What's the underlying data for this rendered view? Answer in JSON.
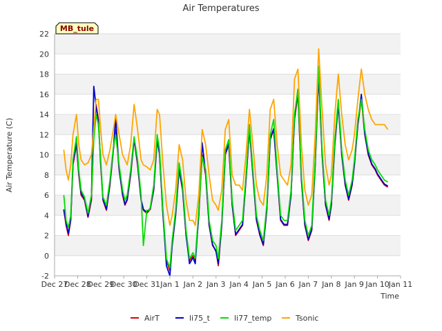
{
  "chart_data": {
    "type": "line",
    "title": "Air Temperatures",
    "xlabel": "Time",
    "ylabel": "Air Temperature (C)",
    "station_label": "MB_tule",
    "ylim": [
      -2,
      22
    ],
    "yticks": [
      -2,
      0,
      2,
      4,
      6,
      8,
      10,
      12,
      14,
      16,
      18,
      20,
      22
    ],
    "xlim": [
      0,
      15
    ],
    "x_unit": "days from Dec 27",
    "xticks": [
      {
        "pos": 0,
        "label": "Dec 27"
      },
      {
        "pos": 1,
        "label": "Dec 28"
      },
      {
        "pos": 2,
        "label": "Dec 29"
      },
      {
        "pos": 3,
        "label": "Dec 30"
      },
      {
        "pos": 4,
        "label": "Dec 31"
      },
      {
        "pos": 5,
        "label": "Jan 1"
      },
      {
        "pos": 6,
        "label": "Jan 2"
      },
      {
        "pos": 7,
        "label": "Jan 3"
      },
      {
        "pos": 8,
        "label": "Jan 4"
      },
      {
        "pos": 9,
        "label": "Jan 5"
      },
      {
        "pos": 10,
        "label": "Jan 6"
      },
      {
        "pos": 11,
        "label": "Jan 7"
      },
      {
        "pos": 12,
        "label": "Jan 8"
      },
      {
        "pos": 13,
        "label": "Jan 9"
      },
      {
        "pos": 14,
        "label": "Jan 10"
      },
      {
        "pos": 15,
        "label": "Jan 11"
      }
    ],
    "grid": true,
    "legend_position": "bottom",
    "series": [
      {
        "name": "AirT",
        "color": "#dd0000",
        "x": [
          0.4,
          0.5,
          0.6,
          0.7,
          0.8,
          0.95,
          1.05,
          1.15,
          1.3,
          1.45,
          1.6,
          1.7,
          1.8,
          1.9,
          2.0,
          2.1,
          2.25,
          2.4,
          2.55,
          2.65,
          2.8,
          2.95,
          3.05,
          3.15,
          3.3,
          3.45,
          3.6,
          3.75,
          3.85,
          4.0,
          4.15,
          4.3,
          4.45,
          4.55,
          4.7,
          4.85,
          5.0,
          5.1,
          5.25,
          5.4,
          5.55,
          5.7,
          5.85,
          6.0,
          6.1,
          6.25,
          6.4,
          6.55,
          6.7,
          6.85,
          7.0,
          7.1,
          7.25,
          7.4,
          7.55,
          7.7,
          7.85,
          8.0,
          8.15,
          8.3,
          8.45,
          8.6,
          8.75,
          8.9,
          9.05,
          9.2,
          9.35,
          9.5,
          9.65,
          9.8,
          9.95,
          10.1,
          10.25,
          10.4,
          10.55,
          10.7,
          10.85,
          11.0,
          11.15,
          11.3,
          11.45,
          11.6,
          11.75,
          11.9,
          12.0,
          12.15,
          12.3,
          12.45,
          12.6,
          12.75,
          12.9,
          13.0,
          13.15,
          13.3,
          13.45,
          13.6,
          13.75,
          13.9,
          14.0,
          14.15,
          14.3,
          14.45
        ],
        "y": [
          4.5,
          3.0,
          2.0,
          3.5,
          9.0,
          11.0,
          8.0,
          6.0,
          5.5,
          3.8,
          5.5,
          12.0,
          15.0,
          13.5,
          9.0,
          5.5,
          4.5,
          7.0,
          10.5,
          12.5,
          8.5,
          6.0,
          5.0,
          5.5,
          8.0,
          11.5,
          9.0,
          5.5,
          4.5,
          4.2,
          4.6,
          6.5,
          11.5,
          10.0,
          4.0,
          -0.5,
          -1.5,
          1.0,
          4.0,
          8.5,
          6.5,
          2.0,
          -0.5,
          0.0,
          -0.5,
          4.0,
          10.0,
          8.0,
          3.0,
          1.0,
          0.5,
          -1.0,
          3.0,
          10.0,
          11.0,
          5.0,
          2.0,
          2.5,
          3.0,
          7.5,
          12.5,
          8.0,
          3.5,
          2.0,
          1.0,
          4.5,
          11.5,
          12.5,
          8.0,
          3.5,
          3.0,
          3.0,
          6.0,
          13.5,
          16.0,
          7.5,
          3.0,
          1.5,
          2.5,
          9.0,
          18.0,
          10.0,
          5.0,
          3.5,
          5.0,
          11.0,
          15.0,
          10.0,
          7.0,
          5.5,
          7.0,
          9.0,
          13.0,
          15.5,
          12.0,
          10.0,
          9.0,
          8.5,
          8.0,
          7.5,
          7.0,
          6.8
        ]
      },
      {
        "name": "li75_t",
        "color": "#0000cc",
        "x": [
          0.4,
          0.5,
          0.6,
          0.7,
          0.8,
          0.95,
          1.05,
          1.15,
          1.3,
          1.45,
          1.6,
          1.7,
          1.8,
          1.9,
          2.0,
          2.1,
          2.25,
          2.4,
          2.55,
          2.65,
          2.8,
          2.95,
          3.05,
          3.15,
          3.3,
          3.45,
          3.6,
          3.75,
          3.85,
          4.0,
          4.15,
          4.3,
          4.45,
          4.55,
          4.7,
          4.85,
          5.0,
          5.1,
          5.25,
          5.4,
          5.55,
          5.7,
          5.85,
          6.0,
          6.1,
          6.25,
          6.4,
          6.55,
          6.7,
          6.85,
          7.0,
          7.1,
          7.25,
          7.4,
          7.55,
          7.7,
          7.85,
          8.0,
          8.15,
          8.3,
          8.45,
          8.6,
          8.75,
          8.9,
          9.05,
          9.2,
          9.35,
          9.5,
          9.65,
          9.8,
          9.95,
          10.1,
          10.25,
          10.4,
          10.55,
          10.7,
          10.85,
          11.0,
          11.15,
          11.3,
          11.45,
          11.6,
          11.75,
          11.9,
          12.0,
          12.15,
          12.3,
          12.45,
          12.6,
          12.75,
          12.9,
          13.0,
          13.15,
          13.3,
          13.45,
          13.6,
          13.75,
          13.9,
          14.0,
          14.15,
          14.3,
          14.45
        ],
        "y": [
          4.6,
          3.2,
          2.2,
          3.6,
          9.2,
          11.2,
          8.2,
          6.2,
          5.6,
          3.9,
          5.8,
          16.8,
          14.8,
          13.2,
          9.2,
          5.6,
          4.6,
          7.2,
          10.6,
          13.6,
          8.6,
          6.1,
          5.1,
          5.6,
          8.2,
          11.6,
          9.2,
          5.6,
          4.6,
          4.3,
          4.7,
          6.6,
          11.6,
          10.1,
          4.1,
          -1.0,
          -2.0,
          1.1,
          4.1,
          8.6,
          6.6,
          2.1,
          -0.8,
          -0.2,
          -0.8,
          4.1,
          11.2,
          8.1,
          3.1,
          1.1,
          0.4,
          -0.8,
          3.1,
          10.1,
          11.1,
          5.1,
          2.1,
          2.6,
          3.1,
          7.6,
          12.6,
          8.1,
          3.6,
          2.1,
          1.1,
          4.6,
          11.6,
          12.6,
          8.1,
          3.6,
          3.1,
          3.1,
          6.1,
          13.6,
          16.5,
          7.6,
          3.1,
          1.6,
          2.6,
          9.1,
          18.2,
          10.1,
          5.1,
          3.6,
          5.1,
          11.1,
          15.1,
          10.1,
          7.1,
          5.6,
          7.1,
          9.1,
          13.1,
          16.0,
          12.1,
          10.1,
          9.1,
          8.6,
          8.1,
          7.6,
          7.1,
          6.9
        ]
      },
      {
        "name": "li77_temp",
        "color": "#00dd00",
        "x": [
          0.4,
          0.5,
          0.6,
          0.7,
          0.8,
          0.95,
          1.05,
          1.15,
          1.3,
          1.45,
          1.6,
          1.7,
          1.8,
          1.9,
          2.0,
          2.1,
          2.25,
          2.4,
          2.55,
          2.65,
          2.8,
          2.95,
          3.05,
          3.15,
          3.3,
          3.45,
          3.6,
          3.75,
          3.85,
          4.0,
          4.1,
          4.15,
          4.3,
          4.45,
          4.55,
          4.7,
          4.85,
          5.0,
          5.1,
          5.25,
          5.4,
          5.55,
          5.7,
          5.85,
          6.0,
          6.1,
          6.25,
          6.4,
          6.55,
          6.7,
          6.85,
          7.0,
          7.1,
          7.25,
          7.4,
          7.55,
          7.7,
          7.85,
          8.0,
          8.15,
          8.3,
          8.45,
          8.6,
          8.75,
          8.9,
          9.05,
          9.2,
          9.35,
          9.5,
          9.65,
          9.8,
          9.95,
          10.1,
          10.25,
          10.4,
          10.55,
          10.7,
          10.85,
          11.0,
          11.15,
          11.3,
          11.45,
          11.6,
          11.75,
          11.9,
          12.0,
          12.15,
          12.3,
          12.45,
          12.6,
          12.75,
          12.9,
          13.0,
          13.15,
          13.3,
          13.45,
          13.6,
          13.75,
          13.9,
          14.0,
          14.15,
          14.3,
          14.45
        ],
        "y": [
          6.0,
          3.5,
          2.8,
          4.0,
          9.5,
          11.8,
          8.5,
          6.5,
          5.8,
          4.2,
          6.0,
          11.5,
          14.0,
          13.0,
          9.5,
          5.8,
          5.0,
          7.5,
          10.8,
          12.0,
          9.0,
          6.5,
          5.5,
          6.0,
          8.5,
          11.8,
          9.5,
          6.0,
          1.0,
          4.5,
          4.5,
          4.8,
          7.0,
          12.0,
          10.5,
          4.5,
          -0.3,
          -1.2,
          1.5,
          4.5,
          9.2,
          7.0,
          2.5,
          -0.3,
          0.3,
          -0.3,
          4.5,
          9.8,
          8.5,
          3.5,
          1.5,
          1.0,
          -0.3,
          3.5,
          10.5,
          11.5,
          5.5,
          2.5,
          3.0,
          3.5,
          8.0,
          13.0,
          8.5,
          4.0,
          2.5,
          1.5,
          5.0,
          12.0,
          13.5,
          8.5,
          4.0,
          3.5,
          3.5,
          6.5,
          14.0,
          16.5,
          8.0,
          3.5,
          2.0,
          3.0,
          9.5,
          18.8,
          10.5,
          5.5,
          4.0,
          5.5,
          11.5,
          15.5,
          10.5,
          7.5,
          6.0,
          7.5,
          9.5,
          13.5,
          15.5,
          12.5,
          10.5,
          9.5,
          9.0,
          8.5,
          8.0,
          7.5,
          7.3
        ]
      },
      {
        "name": "Tsonic",
        "color": "#ffa500",
        "x": [
          0.4,
          0.5,
          0.6,
          0.7,
          0.8,
          0.95,
          1.05,
          1.15,
          1.3,
          1.45,
          1.6,
          1.7,
          1.8,
          1.9,
          2.0,
          2.1,
          2.25,
          2.4,
          2.55,
          2.65,
          2.8,
          2.95,
          3.05,
          3.15,
          3.3,
          3.45,
          3.6,
          3.75,
          3.85,
          4.0,
          4.15,
          4.3,
          4.45,
          4.55,
          4.7,
          4.85,
          5.0,
          5.1,
          5.25,
          5.4,
          5.55,
          5.7,
          5.85,
          6.0,
          6.1,
          6.25,
          6.4,
          6.55,
          6.7,
          6.85,
          7.0,
          7.1,
          7.25,
          7.4,
          7.55,
          7.7,
          7.85,
          8.0,
          8.15,
          8.3,
          8.45,
          8.6,
          8.75,
          8.9,
          9.05,
          9.2,
          9.35,
          9.5,
          9.65,
          9.8,
          9.95,
          10.1,
          10.25,
          10.4,
          10.55,
          10.7,
          10.85,
          11.0,
          11.15,
          11.3,
          11.45,
          11.6,
          11.75,
          11.9,
          12.0,
          12.15,
          12.3,
          12.45,
          12.6,
          12.75,
          12.9,
          13.0,
          13.15,
          13.3,
          13.45,
          13.6,
          13.75,
          13.9,
          14.0,
          14.15,
          14.3,
          14.45
        ],
        "y": [
          10.5,
          8.5,
          7.5,
          9.0,
          12.0,
          14.0,
          11.0,
          9.5,
          9.0,
          9.2,
          10.0,
          12.5,
          15.5,
          15.5,
          12.5,
          10.0,
          9.0,
          10.5,
          12.5,
          14.0,
          12.0,
          10.0,
          9.5,
          9.0,
          11.0,
          15.0,
          12.5,
          9.5,
          9.0,
          8.8,
          8.5,
          9.5,
          14.5,
          14.0,
          9.0,
          5.0,
          3.0,
          4.0,
          6.5,
          11.0,
          9.5,
          5.5,
          3.5,
          3.5,
          3.0,
          6.0,
          12.5,
          11.0,
          8.0,
          5.5,
          5.0,
          4.5,
          6.5,
          12.5,
          13.5,
          8.0,
          7.0,
          7.0,
          6.5,
          10.0,
          14.5,
          11.0,
          7.0,
          5.5,
          5.0,
          8.0,
          14.5,
          15.5,
          11.0,
          8.0,
          7.5,
          7.0,
          9.0,
          17.5,
          18.5,
          11.0,
          6.5,
          5.0,
          6.0,
          12.0,
          20.5,
          14.5,
          9.0,
          7.0,
          8.0,
          14.0,
          18.0,
          14.0,
          11.0,
          9.5,
          10.5,
          12.0,
          15.5,
          18.5,
          16.0,
          14.5,
          13.5,
          13.0,
          13.0,
          13.0,
          13.0,
          12.5
        ]
      }
    ]
  }
}
